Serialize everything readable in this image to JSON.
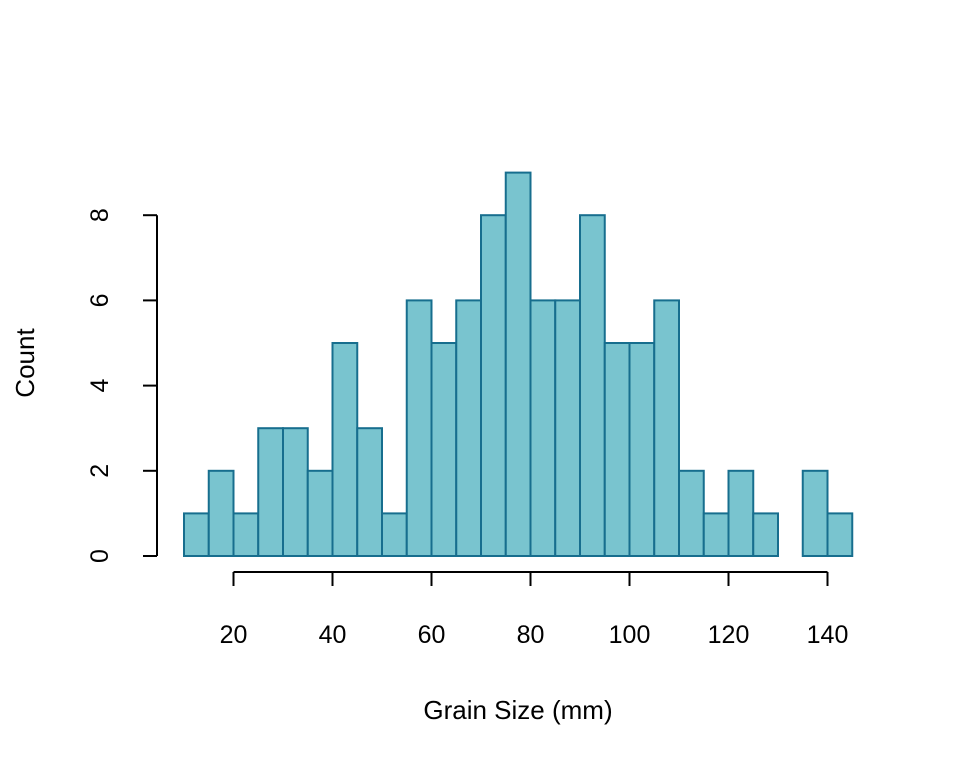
{
  "chart_data": {
    "type": "bar",
    "histogram": true,
    "bin_width": 5,
    "bins": [
      {
        "start": 10,
        "end": 15,
        "count": 1
      },
      {
        "start": 15,
        "end": 20,
        "count": 2
      },
      {
        "start": 20,
        "end": 25,
        "count": 1
      },
      {
        "start": 25,
        "end": 30,
        "count": 3
      },
      {
        "start": 30,
        "end": 35,
        "count": 3
      },
      {
        "start": 35,
        "end": 40,
        "count": 2
      },
      {
        "start": 40,
        "end": 45,
        "count": 5
      },
      {
        "start": 45,
        "end": 50,
        "count": 3
      },
      {
        "start": 50,
        "end": 55,
        "count": 1
      },
      {
        "start": 55,
        "end": 60,
        "count": 6
      },
      {
        "start": 60,
        "end": 65,
        "count": 5
      },
      {
        "start": 65,
        "end": 70,
        "count": 6
      },
      {
        "start": 70,
        "end": 75,
        "count": 8
      },
      {
        "start": 75,
        "end": 80,
        "count": 9
      },
      {
        "start": 80,
        "end": 85,
        "count": 6
      },
      {
        "start": 85,
        "end": 90,
        "count": 6
      },
      {
        "start": 90,
        "end": 95,
        "count": 8
      },
      {
        "start": 95,
        "end": 100,
        "count": 5
      },
      {
        "start": 100,
        "end": 105,
        "count": 5
      },
      {
        "start": 105,
        "end": 110,
        "count": 6
      },
      {
        "start": 110,
        "end": 115,
        "count": 2
      },
      {
        "start": 115,
        "end": 120,
        "count": 1
      },
      {
        "start": 120,
        "end": 125,
        "count": 2
      },
      {
        "start": 125,
        "end": 130,
        "count": 1
      },
      {
        "start": 130,
        "end": 135,
        "count": 0
      },
      {
        "start": 135,
        "end": 140,
        "count": 2
      },
      {
        "start": 140,
        "end": 145,
        "count": 1
      }
    ],
    "title": "",
    "xlabel": "Grain Size (mm)",
    "ylabel": "Count",
    "xlim": [
      10,
      145
    ],
    "ylim": [
      0,
      9
    ],
    "x_ticks": [
      20,
      40,
      60,
      80,
      100,
      120,
      140
    ],
    "y_ticks": [
      0,
      2,
      4,
      6,
      8
    ],
    "grid": false,
    "colors": {
      "bar_fill": "#79C4CF",
      "bar_stroke": "#176E8E",
      "axis": "#000000"
    }
  }
}
